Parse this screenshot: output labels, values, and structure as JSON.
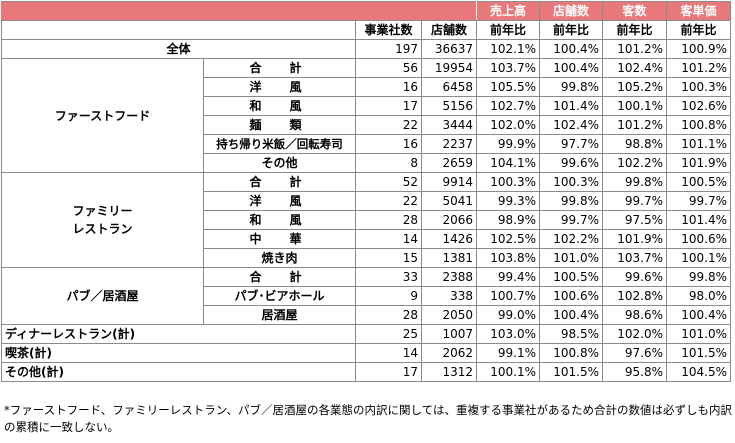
{
  "header": {
    "metrics": [
      "売上高",
      "店舗数",
      "客数",
      "客単価"
    ],
    "col_companies": "事業社数",
    "col_stores": "店舗数",
    "yoy": "前年比"
  },
  "total": {
    "label": "全体",
    "companies": "197",
    "stores": "36637",
    "values": [
      "102.1%",
      "100.4%",
      "101.2%",
      "100.9%"
    ]
  },
  "groups": [
    {
      "label": "ファーストフード",
      "rows": [
        {
          "label": "合　計",
          "companies": "56",
          "stores": "19954",
          "values": [
            "103.7%",
            "100.4%",
            "102.4%",
            "101.2%"
          ]
        },
        {
          "label": "洋　風",
          "companies": "16",
          "stores": "6458",
          "values": [
            "105.5%",
            "99.8%",
            "105.2%",
            "100.3%"
          ]
        },
        {
          "label": "和　風",
          "companies": "17",
          "stores": "5156",
          "values": [
            "102.7%",
            "101.4%",
            "100.1%",
            "102.6%"
          ]
        },
        {
          "label": "麺　類",
          "companies": "22",
          "stores": "3444",
          "values": [
            "102.0%",
            "102.4%",
            "101.2%",
            "100.8%"
          ]
        },
        {
          "label": "持ち帰り米飯／回転寿司",
          "companies": "16",
          "stores": "2237",
          "values": [
            "99.9%",
            "97.7%",
            "98.8%",
            "101.1%"
          ]
        },
        {
          "label": "その他",
          "companies": "8",
          "stores": "2659",
          "values": [
            "104.1%",
            "99.6%",
            "102.2%",
            "101.9%"
          ]
        }
      ]
    },
    {
      "label_line1": "ファミリー",
      "label_line2": "レストラン",
      "rows": [
        {
          "label": "合　計",
          "companies": "52",
          "stores": "9914",
          "values": [
            "100.3%",
            "100.3%",
            "99.8%",
            "100.5%"
          ]
        },
        {
          "label": "洋　風",
          "companies": "22",
          "stores": "5041",
          "values": [
            "99.3%",
            "99.8%",
            "99.7%",
            "99.7%"
          ]
        },
        {
          "label": "和　風",
          "companies": "28",
          "stores": "2066",
          "values": [
            "98.9%",
            "99.7%",
            "97.5%",
            "101.4%"
          ]
        },
        {
          "label": "中　華",
          "companies": "14",
          "stores": "1426",
          "values": [
            "102.5%",
            "102.2%",
            "101.9%",
            "100.6%"
          ]
        },
        {
          "label": "焼き肉",
          "companies": "15",
          "stores": "1381",
          "values": [
            "103.8%",
            "101.0%",
            "103.7%",
            "100.1%"
          ]
        }
      ]
    },
    {
      "label": "パブ／居酒屋",
      "rows": [
        {
          "label": "合　計",
          "companies": "33",
          "stores": "2388",
          "values": [
            "99.4%",
            "100.5%",
            "99.6%",
            "99.8%"
          ]
        },
        {
          "label": "パブ･ビアホール",
          "companies": "9",
          "stores": "338",
          "values": [
            "100.7%",
            "100.6%",
            "102.8%",
            "98.0%"
          ]
        },
        {
          "label": "居酒屋",
          "companies": "28",
          "stores": "2050",
          "values": [
            "99.0%",
            "100.4%",
            "98.6%",
            "100.4%"
          ]
        }
      ]
    }
  ],
  "singles": [
    {
      "label": "ディナーレストラン(計)",
      "companies": "25",
      "stores": "1007",
      "values": [
        "103.0%",
        "98.5%",
        "102.0%",
        "101.0%"
      ]
    },
    {
      "label": "喫茶(計)",
      "companies": "14",
      "stores": "2062",
      "values": [
        "99.1%",
        "100.8%",
        "97.6%",
        "101.5%"
      ]
    },
    {
      "label": "その他(計)",
      "companies": "17",
      "stores": "1312",
      "values": [
        "100.1%",
        "101.5%",
        "95.8%",
        "104.5%"
      ]
    }
  ],
  "note": "*ファーストフード、ファミリーレストラン、パブ／居酒屋の各業態の内訳に関しては、重複する事業社があるため合計の数値は必ずしも内訳の累積に一致しない。"
}
